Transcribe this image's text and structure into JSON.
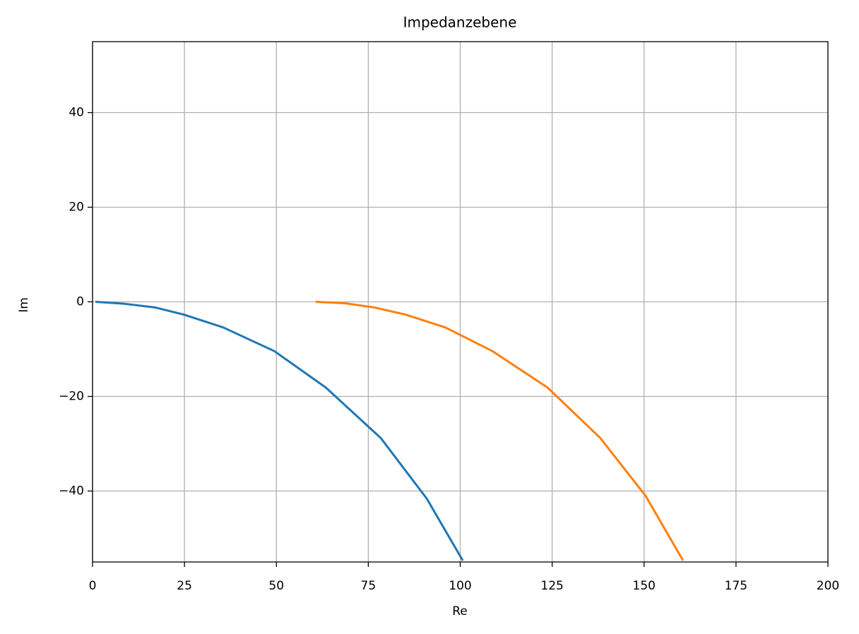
{
  "chart_data": {
    "type": "line",
    "title": "Impedanzebene",
    "x_label": "Re",
    "y_label": "Im",
    "series": [
      {
        "color": "#1f77b4",
        "x": [
          0.8,
          8.5,
          17.1,
          24.8,
          35.5,
          49.4,
          63.4,
          78.4,
          90.9,
          100.7
        ],
        "values": [
          0,
          -0.4,
          -1.2,
          -2.7,
          -5.4,
          -10.4,
          -18.1,
          -28.8,
          -41.6,
          -54.7
        ]
      },
      {
        "color": "#ff7f0e",
        "x": [
          60.7,
          68.6,
          76.7,
          85.1,
          95.9,
          108.7,
          123.7,
          138.1,
          150.4,
          160.6
        ],
        "values": [
          0,
          -0.3,
          -1.2,
          -2.7,
          -5.4,
          -10.4,
          -18.1,
          -28.8,
          -41,
          -54.7
        ]
      }
    ],
    "xlim": [
      0,
      200
    ],
    "xticks": [
      0,
      25,
      50,
      75,
      100,
      125,
      150,
      175,
      200
    ],
    "ylim": [
      -55,
      55
    ],
    "yticks": [
      {
        "value": -40,
        "label": "−40"
      },
      {
        "value": -20,
        "label": "−20"
      },
      0,
      20,
      40
    ],
    "grid": true
  }
}
